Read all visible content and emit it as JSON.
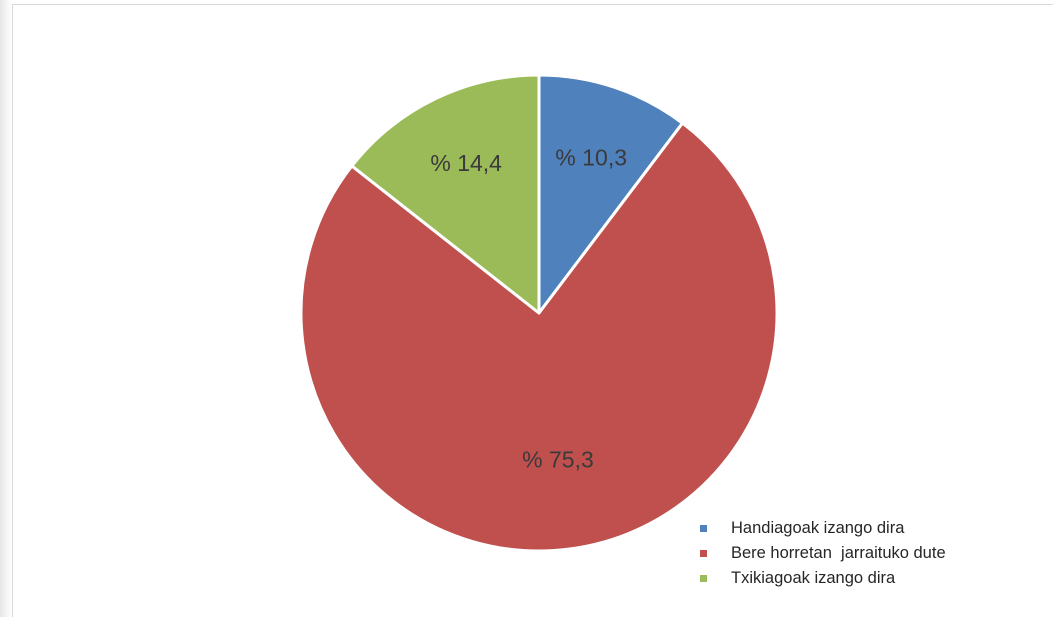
{
  "chart_data": {
    "type": "pie",
    "title": "",
    "slices": [
      {
        "name": "Handiagoak izango dira",
        "value": 10.3,
        "label": "% 10,3",
        "color": "#4f81bd"
      },
      {
        "name": "Bere horretan  jarraituko dute",
        "value": 75.3,
        "label": "% 75,3",
        "color": "#c0504d"
      },
      {
        "name": "Txikiagoak izango dira",
        "value": 14.4,
        "label": "% 14,4",
        "color": "#9bbb59"
      }
    ],
    "start_angle": "12 o'clock",
    "direction": "clockwise",
    "legend_position": "bottom-right"
  }
}
